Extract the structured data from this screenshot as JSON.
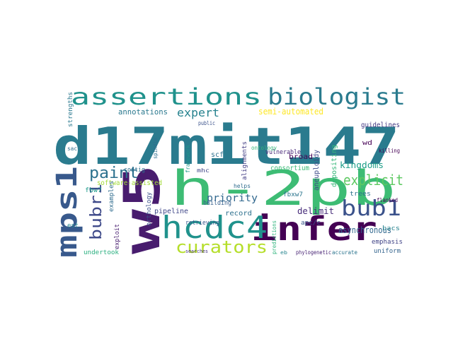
{
  "word_cloud": {
    "words": [
      {
        "text": "d17mit147",
        "color": "#2a7b8e"
      },
      {
        "text": "h-2pb",
        "color": "#3dbc74"
      },
      {
        "text": "w5",
        "color": "#481c6e"
      },
      {
        "text": "assertions",
        "color": "#20928c"
      },
      {
        "text": "biologist",
        "color": "#2a7b8e"
      },
      {
        "text": "infer",
        "color": "#440154"
      },
      {
        "text": "hcdc4",
        "color": "#20928c"
      },
      {
        "text": "mps1",
        "color": "#38598c"
      },
      {
        "text": "bub1",
        "color": "#3b528b"
      },
      {
        "text": "curators",
        "color": "#b5de2b"
      },
      {
        "text": "paint",
        "color": "#2c718e"
      },
      {
        "text": "explicit",
        "color": "#5ec962"
      },
      {
        "text": "bubr1",
        "color": "#3e4989"
      },
      {
        "text": "expert",
        "color": "#26828e"
      },
      {
        "text": "priority",
        "color": "#31688e"
      },
      {
        "text": "kingdoms",
        "color": "#1f9e89"
      },
      {
        "text": "semi-automated",
        "color": "#fde725"
      },
      {
        "text": "annotations",
        "color": "#2a788e"
      },
      {
        "text": "delimit",
        "color": "#472c7a"
      },
      {
        "text": "asynchronous",
        "color": "#31688e"
      },
      {
        "text": "consortium",
        "color": "#3aba76"
      },
      {
        "text": "software-assisted",
        "color": "#a2da37"
      },
      {
        "text": "pipeline",
        "color": "#3f4788"
      },
      {
        "text": "record",
        "color": "#2d708e"
      },
      {
        "text": "building",
        "color": "#355f8d"
      },
      {
        "text": "undertook",
        "color": "#29af7f"
      },
      {
        "text": "broad",
        "color": "#440154"
      },
      {
        "text": "guidelines",
        "color": "#443983"
      },
      {
        "text": "emphasis",
        "color": "#414487"
      },
      {
        "text": "uniform",
        "color": "#33638d"
      },
      {
        "text": "trees",
        "color": "#2c728e"
      },
      {
        "text": "bacs",
        "color": "#26828e"
      },
      {
        "text": "depositing",
        "color": "#35b779"
      },
      {
        "text": "aneuploidy",
        "color": "#3e4a89"
      },
      {
        "text": "retrieving",
        "color": "#39558c"
      },
      {
        "text": "orthology",
        "color": "#3b528b"
      },
      {
        "text": "exploit",
        "color": "#481f70"
      },
      {
        "text": "examples",
        "color": "#2f6c8e"
      },
      {
        "text": "contig",
        "color": "#2e6e8e"
      },
      {
        "text": "fbw7",
        "color": "#1e9b8a"
      },
      {
        "text": "fbxw7",
        "color": "#2b758e"
      },
      {
        "text": "alignments",
        "color": "#433e85"
      },
      {
        "text": "vulnerable",
        "color": "#482878"
      },
      {
        "text": "strengths",
        "color": "#2a788e"
      },
      {
        "text": "apc/c",
        "color": "#38588c"
      },
      {
        "text": "est",
        "color": "#25858e"
      },
      {
        "text": "scf",
        "color": "#2d718e"
      },
      {
        "text": "ontology",
        "color": "#35b779"
      },
      {
        "text": "mhc",
        "color": "#404688"
      },
      {
        "text": "helps",
        "color": "#2f6c8e"
      },
      {
        "text": "killing",
        "color": "#440154"
      },
      {
        "text": "wd",
        "color": "#440154"
      },
      {
        "text": "flanked",
        "color": "#440154"
      },
      {
        "text": "framework",
        "color": "#1f988b"
      },
      {
        "text": "public",
        "color": "#3b528b"
      },
      {
        "text": "sac",
        "color": "#2e6d8e"
      },
      {
        "text": "spindle",
        "color": "#2e6e8e"
      },
      {
        "text": "predictions",
        "color": "#2fb47c"
      },
      {
        "text": "phylogenetic",
        "color": "#482475"
      },
      {
        "text": "accurate",
        "color": "#2b748e"
      },
      {
        "text": "searches",
        "color": "#46337f"
      },
      {
        "text": "eb",
        "color": "#25848e"
      }
    ]
  }
}
